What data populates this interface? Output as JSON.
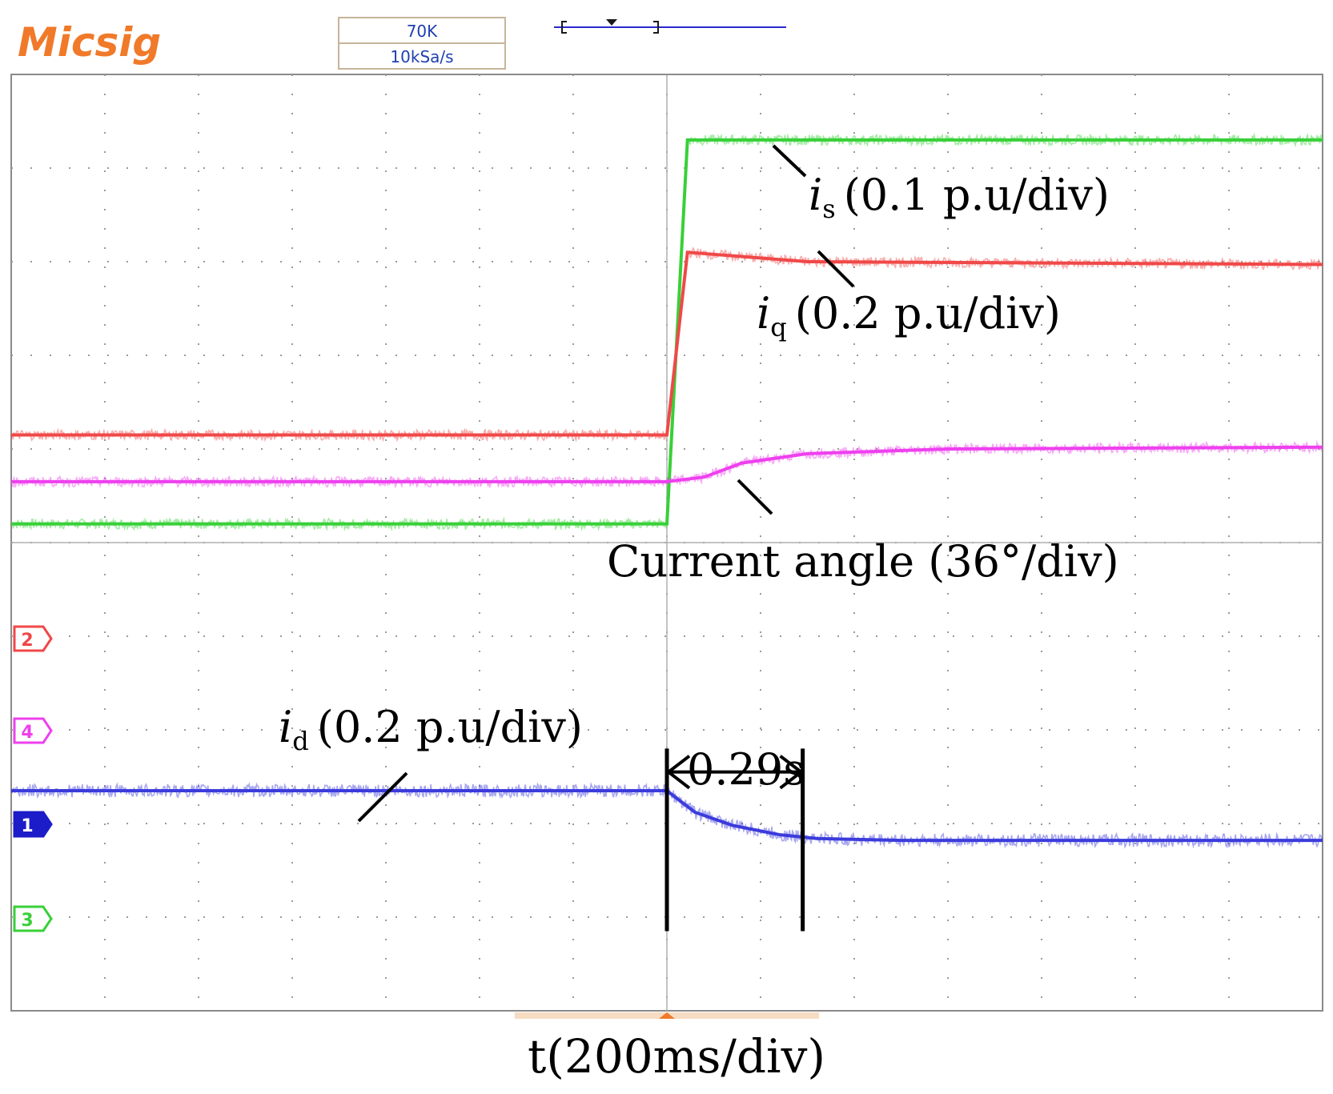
{
  "header": {
    "brand": "Micsig",
    "memory_depth": "70K",
    "sample_rate": "10kSa/s"
  },
  "colors": {
    "brand": "#f07a2a",
    "grid": "#9a9a9a",
    "frame": "#8a8a8a",
    "header_text": "#1f3fb0",
    "ch1": "#3b3bdc",
    "ch2": "#f04848",
    "ch3": "#38d038",
    "ch4": "#ee40ee",
    "annotation": "#000000"
  },
  "channels": [
    {
      "id": "ch1",
      "marker": "1",
      "filled": true
    },
    {
      "id": "ch2",
      "marker": "2",
      "filled": false
    },
    {
      "id": "ch3",
      "marker": "3",
      "filled": false
    },
    {
      "id": "ch4",
      "marker": "4",
      "filled": false
    }
  ],
  "annotations": {
    "is": {
      "symbol": "i",
      "sub": "s",
      "scale": "(0.1 p.u/div)"
    },
    "iq": {
      "symbol": "i",
      "sub": "q",
      "scale": "(0.2 p.u/div)"
    },
    "angle": {
      "text": "Current angle (36°/div)"
    },
    "id": {
      "symbol": "i",
      "sub": "d",
      "scale": "(0.2 p.u/div)"
    },
    "duration": "0.29s",
    "time_axis": "t(200ms/div)"
  },
  "chart_data": {
    "type": "line",
    "grid": true,
    "x_unit": "div",
    "y_unit": "div",
    "xlim": [
      0,
      14
    ],
    "ylim": [
      0,
      10
    ],
    "x_tick_spacing": "200ms/div",
    "series": [
      {
        "channel": "ch3",
        "x": [
          0,
          7,
          7.22,
          14
        ],
        "y": [
          5.2,
          5.2,
          9.3,
          9.3
        ]
      },
      {
        "channel": "ch2",
        "x": [
          0,
          7,
          7.22,
          8.5,
          14
        ],
        "y": [
          6.15,
          6.15,
          8.1,
          8.0,
          7.97
        ]
      },
      {
        "channel": "ch4",
        "x": [
          0,
          7,
          7.4,
          7.8,
          8.5,
          10,
          14
        ],
        "y": [
          5.65,
          5.65,
          5.7,
          5.85,
          5.95,
          6.0,
          6.02
        ]
      },
      {
        "channel": "ch1",
        "x": [
          0,
          7,
          7.3,
          7.7,
          8.2,
          8.6,
          9.5,
          14
        ],
        "y": [
          2.35,
          2.35,
          2.12,
          1.98,
          1.88,
          1.84,
          1.82,
          1.82
        ]
      }
    ],
    "duration_marker": {
      "x": [
        7,
        8.45
      ],
      "label": "0.29s"
    }
  }
}
